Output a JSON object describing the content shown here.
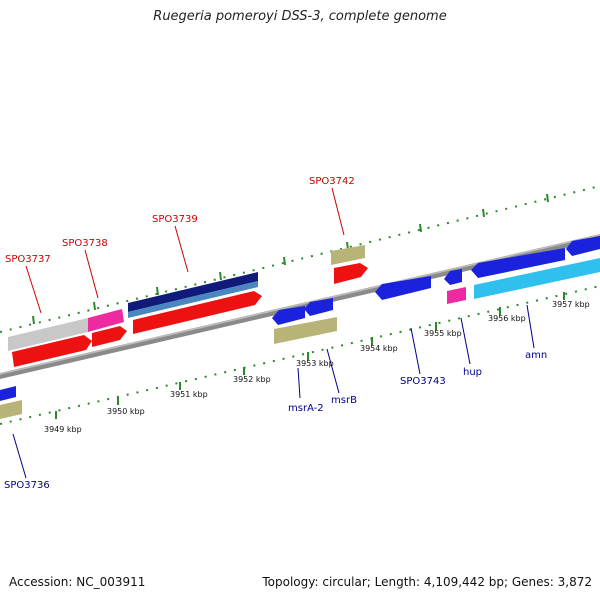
{
  "title": "Ruegeria pomeroyi DSS-3, complete genome",
  "accession": "Accession: NC_003911",
  "summary": "Topology: circular; Length: 4,109,442 bp; Genes: 3,872",
  "kbp_labels": [
    "3949 kbp",
    "3950 kbp",
    "3951 kbp",
    "3952 kbp",
    "3953 kbp",
    "3954 kbp",
    "3955 kbp",
    "3956 kbp",
    "3957 kbp"
  ],
  "top_labels": [
    "SPO3737",
    "SPO3738",
    "SPO3739",
    "SPO3742"
  ],
  "bottom_labels": [
    "SPO3736",
    "msrA-2",
    "msrB",
    "SPO3743",
    "hup",
    "amn"
  ],
  "colors": {
    "red": "#ee1111",
    "pink": "#ee2aa0",
    "grey": "#c8c8c8",
    "navy": "#101a7a",
    "steel": "#4a86c0",
    "olive": "#b8b478",
    "blue": "#1a22dd",
    "cyan": "#30c0ee",
    "backbone": "#8a8a8a",
    "tick": "#2a8a2a"
  },
  "icons": [
    "forward-arrow-icon",
    "reverse-arrow-icon",
    "tick-mark-icon"
  ]
}
